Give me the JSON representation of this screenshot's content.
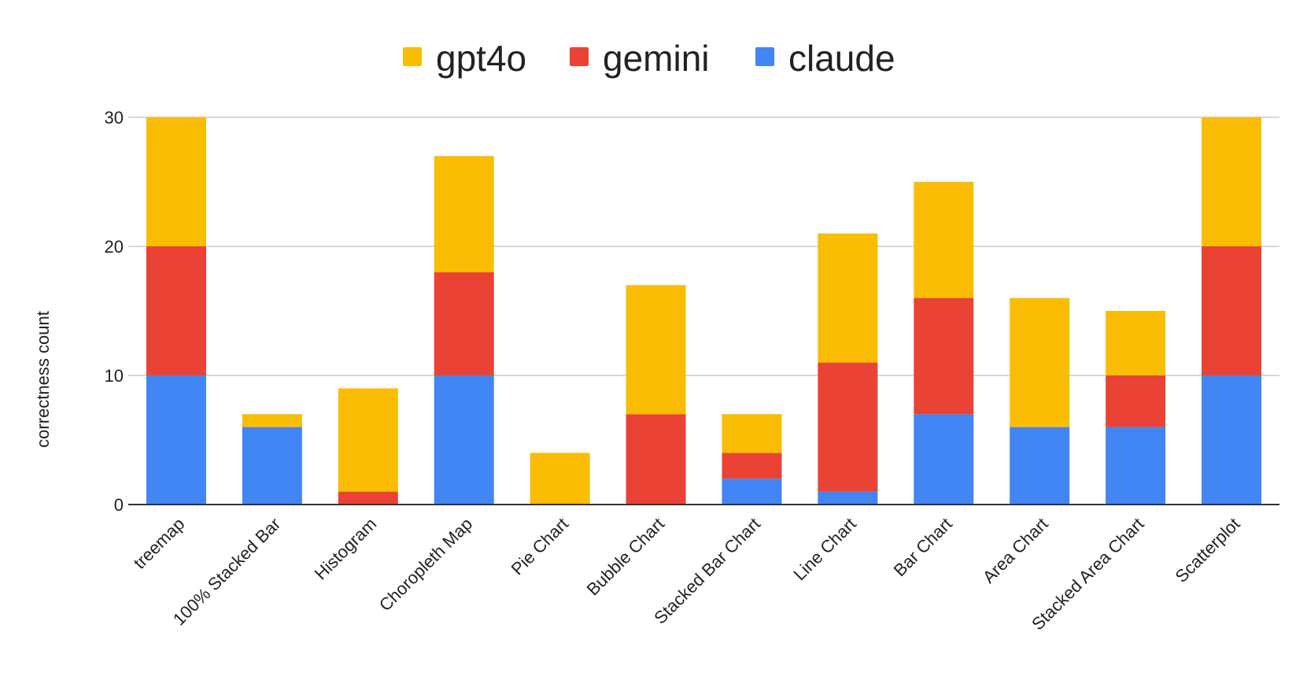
{
  "chart_data": {
    "type": "bar",
    "stacked": true,
    "categories": [
      "treemap",
      "100% Stacked Bar",
      "Histogram",
      "Choropleth Map",
      "Pie Chart",
      "Bubble Chart",
      "Stacked Bar Chart",
      "Line Chart",
      "Bar Chart",
      "Area Chart",
      "Stacked Area Chart",
      "Scatterplot"
    ],
    "series": [
      {
        "name": "claude",
        "color": "#4285f4",
        "values": [
          10,
          6,
          0,
          10,
          0,
          0,
          2,
          1,
          7,
          6,
          6,
          10
        ]
      },
      {
        "name": "gemini",
        "color": "#ea4335",
        "values": [
          10,
          0,
          1,
          8,
          0,
          7,
          2,
          10,
          9,
          0,
          4,
          10
        ]
      },
      {
        "name": "gpt4o",
        "color": "#fbbc04",
        "values": [
          10,
          1,
          8,
          9,
          4,
          10,
          3,
          10,
          9,
          10,
          5,
          10
        ]
      }
    ],
    "legend_order": [
      "gpt4o",
      "gemini",
      "claude"
    ],
    "legend_position": "top",
    "xlabel": "",
    "ylabel": "correctness count",
    "ylim": [
      0,
      30
    ],
    "yticks": [
      "0",
      "10",
      "20",
      "30"
    ],
    "grid": true
  }
}
